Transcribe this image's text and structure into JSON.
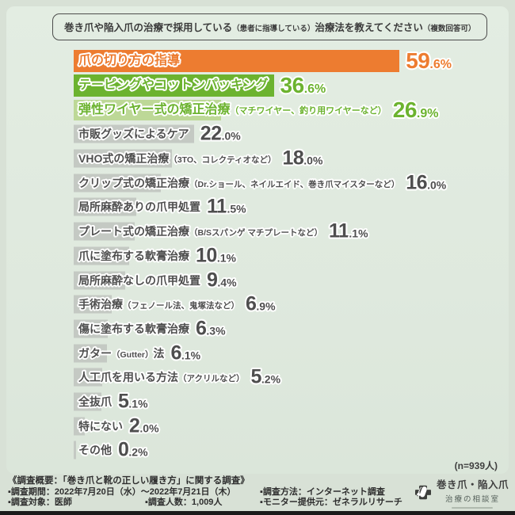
{
  "title": {
    "part1": "巻き爪や陥入爪の治療で採用している",
    "paren1": "（患者に指導している）",
    "part2": "治療法を教えてください",
    "paren2": "（複数回答可）"
  },
  "chart_data": {
    "type": "bar",
    "orientation": "horizontal",
    "unit": "%",
    "xlim": [
      0,
      60
    ],
    "n_label": "(n=939人)",
    "palette": {
      "orange": {
        "bar": "#ed7c30",
        "text": "#ed7c30"
      },
      "green": {
        "bar": "#6cb32f",
        "text": "#6cb32f"
      },
      "lightgreen": {
        "bar": "#bdd897",
        "text": "#6cb32f"
      },
      "gray": {
        "bar": "#c4c9c3",
        "text": "#4e4e4e"
      }
    },
    "items": [
      {
        "label": "爪の切り方の指導",
        "paren": "",
        "suffix": "",
        "value": 59.6,
        "display": "59.6%",
        "color": "orange"
      },
      {
        "label": "テーピングやコットンパッキング",
        "paren": "",
        "suffix": "",
        "value": 36.6,
        "display": "36.6%",
        "color": "green"
      },
      {
        "label": "弾性ワイヤー式の矯正治療",
        "paren": "（マチワイヤー、釣り用ワイヤーなど）",
        "suffix": "",
        "value": 26.9,
        "display": "26.9%",
        "color": "lightgreen"
      },
      {
        "label": "市販グッズによるケア",
        "paren": "",
        "suffix": "",
        "value": 22.0,
        "display": "22.0%",
        "color": "gray"
      },
      {
        "label": "VHO式の矯正治療",
        "paren": "（3TO、コレクティオなど）",
        "suffix": "",
        "value": 18.0,
        "display": "18.0%",
        "color": "gray"
      },
      {
        "label": "クリップ式の矯正治療",
        "paren": "（Dr.ショール、ネイルエイド、巻き爪マイスターなど）",
        "suffix": "",
        "value": 16.0,
        "display": "16.0%",
        "color": "gray"
      },
      {
        "label": "局所麻酔ありの爪甲処置",
        "paren": "",
        "suffix": "",
        "value": 11.5,
        "display": "11.5%",
        "color": "gray"
      },
      {
        "label": "プレート式の矯正治療",
        "paren": "（B/Sスパンゲ マチプレートなど）",
        "suffix": "",
        "value": 11.1,
        "display": "11.1%",
        "color": "gray"
      },
      {
        "label": "爪に塗布する軟膏治療",
        "paren": "",
        "suffix": "",
        "value": 10.1,
        "display": "10.1%",
        "color": "gray"
      },
      {
        "label": "局所麻酔なしの爪甲処置",
        "paren": "",
        "suffix": "",
        "value": 9.4,
        "display": "9.4%",
        "color": "gray"
      },
      {
        "label": "手術治療",
        "paren": "（フェノール法、鬼塚法など）",
        "suffix": "",
        "value": 6.9,
        "display": "6.9%",
        "color": "gray"
      },
      {
        "label": "傷に塗布する軟膏治療",
        "paren": "",
        "suffix": "",
        "value": 6.3,
        "display": "6.3%",
        "color": "gray"
      },
      {
        "label": "ガター",
        "paren": "（Gutter）",
        "suffix": "法",
        "value": 6.1,
        "display": "6.1%",
        "color": "gray"
      },
      {
        "label": "人工爪を用いる方法",
        "paren": "（アクリルなど）",
        "suffix": "",
        "value": 5.2,
        "display": "5.2%",
        "color": "gray"
      },
      {
        "label": "全抜爪",
        "paren": "",
        "suffix": "",
        "value": 5.1,
        "display": "5.1%",
        "color": "gray"
      },
      {
        "label": "特にない",
        "paren": "",
        "suffix": "",
        "value": 2.0,
        "display": "2.0%",
        "color": "gray"
      },
      {
        "label": "その他",
        "paren": "",
        "suffix": "",
        "value": 0.2,
        "display": "0.2%",
        "color": "gray"
      }
    ]
  },
  "footer": {
    "heading": "《調査概要：「巻き爪と靴の正しい履き方」に関する調査》",
    "period": "▪調査期間：2022年7月20日（水）～2022年7月21日（木）",
    "method": "▪調査方法：インターネット調査",
    "target": "▪調査対象：医師",
    "count": "▪調査人数：1,009人",
    "monitor": "▪モニター提供元：ゼネラルリサーチ"
  },
  "logo": {
    "line1": "巻き爪・陥入爪",
    "line2": "治療の相談室"
  },
  "colors": {
    "background_outer": "#d8e1d6",
    "background_panel": "#dfe9de",
    "bottom_bar": "#1b1b1b",
    "title_text": "#3b3b3b"
  }
}
